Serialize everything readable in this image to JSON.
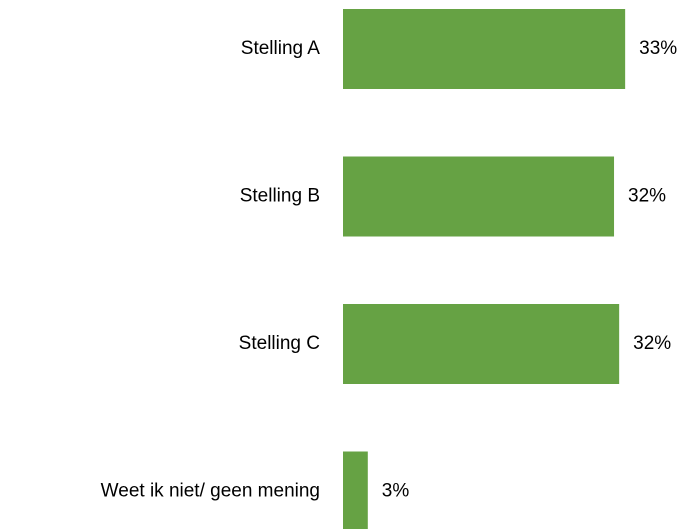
{
  "chart_data": {
    "type": "bar",
    "orientation": "horizontal",
    "categories": [
      "Stelling A",
      "Stelling B",
      "Stelling C",
      "Weet ik niet/ geen mening"
    ],
    "values": [
      33,
      31.7,
      32.3,
      2.9
    ],
    "value_labels": [
      "33%",
      "32%",
      "32%",
      "3%"
    ],
    "color": "#66a244",
    "xlim": [
      0,
      40
    ]
  }
}
